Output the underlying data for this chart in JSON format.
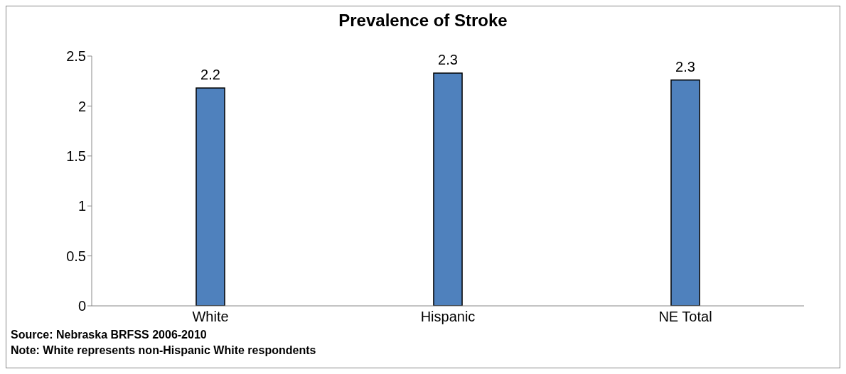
{
  "chart_data": {
    "type": "bar",
    "title": "Prevalence of Stroke",
    "categories": [
      "White",
      "Hispanic",
      "NE Total"
    ],
    "values": [
      2.18,
      2.33,
      2.26
    ],
    "value_labels": [
      "2.2",
      "2.3",
      "2.3"
    ],
    "color": "#4f81bd",
    "ylim": [
      0,
      2.5
    ],
    "yticks": [
      0,
      0.5,
      1,
      1.5,
      2,
      2.5
    ],
    "grid": false,
    "legend": false,
    "annotations": [
      "Source: Nebraska BRFSS 2006-2010",
      "Note: White represents non-Hispanic White respondents"
    ]
  }
}
